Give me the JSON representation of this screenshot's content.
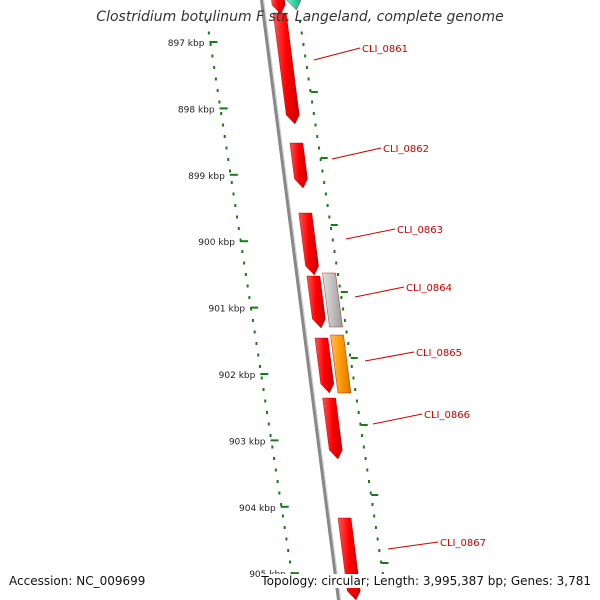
{
  "title": "Clostridium botulinum F str. Langeland, complete genome",
  "accession": "Accession: NC_009699",
  "summary": "Topology: circular; Length: 3,995,387 bp; Genes: 3,781",
  "colors": {
    "gene_forward": "#ff0000",
    "gene_grey": "#c0c0c0",
    "gene_orange": "#ff9900",
    "gene_teal": "#33d9a6",
    "tick": "#1a7a1a",
    "label": "#cc0000",
    "backbone": "#888888"
  },
  "kbp_ticks": [
    "897 kbp",
    "898 kbp",
    "899 kbp",
    "900 kbp",
    "901 kbp",
    "902 kbp",
    "903 kbp",
    "904 kbp",
    "905 kbp"
  ],
  "genes": [
    {
      "label": "",
      "color_key": "gene_forward",
      "lane": 0
    },
    {
      "label": "",
      "color_key": "gene_teal",
      "lane": 1
    },
    {
      "label": "CLI_0861",
      "color_key": "gene_forward",
      "lane": 0
    },
    {
      "label": "CLI_0862",
      "color_key": "gene_forward",
      "lane": 0
    },
    {
      "label": "CLI_0863",
      "color_key": "gene_forward",
      "lane": 0
    },
    {
      "label": "CLI_0864",
      "color_key": "gene_grey",
      "lane": 1
    },
    {
      "label": "",
      "color_key": "gene_forward",
      "lane": 0
    },
    {
      "label": "CLI_0865",
      "color_key": "gene_orange",
      "lane": 1
    },
    {
      "label": "",
      "color_key": "gene_forward",
      "lane": 0
    },
    {
      "label": "CLI_0866",
      "color_key": "gene_forward",
      "lane": 0
    },
    {
      "label": "CLI_0867",
      "color_key": "gene_forward",
      "lane": 0
    }
  ]
}
